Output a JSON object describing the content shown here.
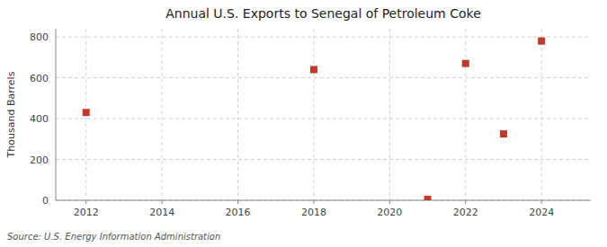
{
  "chart_data": {
    "type": "scatter",
    "title": "Annual U.S. Exports to Senegal of Petroleum Coke",
    "y_label": "Thousand Barrels",
    "source": "Source: U.S. Energy Information Administration",
    "x": [
      2012,
      2018,
      2021,
      2022,
      2023,
      2024
    ],
    "values": [
      430,
      640,
      5,
      670,
      325,
      780
    ],
    "color": "#c0392b",
    "marker": "square",
    "xlim": [
      2011.2,
      2025.3
    ],
    "ylim": [
      0,
      840
    ],
    "xticks": [
      2012,
      2014,
      2016,
      2018,
      2020,
      2022,
      2024
    ],
    "yticks": [
      0,
      200,
      400,
      600,
      800
    ],
    "grid": true
  }
}
